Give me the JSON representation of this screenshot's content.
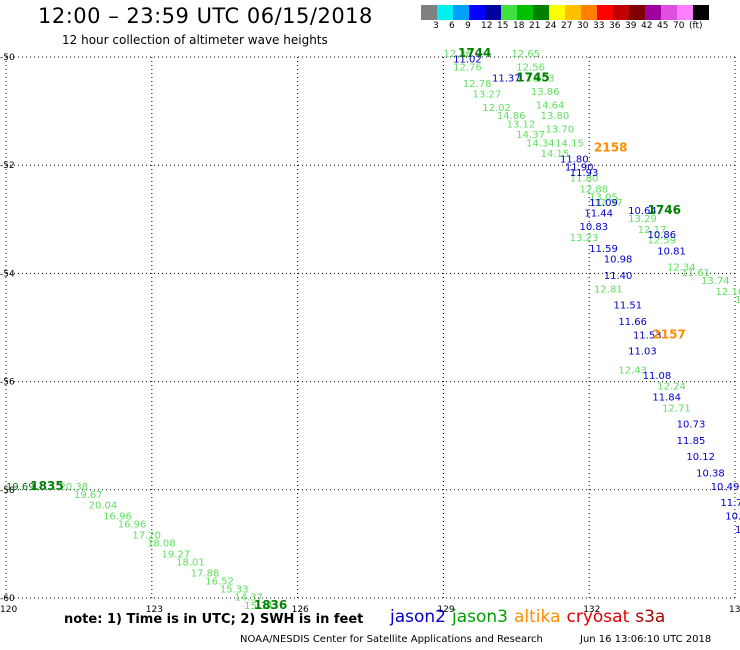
{
  "header": {
    "title": "12:00 – 23:59 UTC 06/15/2018",
    "subtitle": "12 hour collection of altimeter wave heights"
  },
  "scale": {
    "colors": [
      "#808080",
      "#00f0f0",
      "#00a0ff",
      "#0000ff",
      "#0000a0",
      "#40e040",
      "#00c000",
      "#008000",
      "#ffff00",
      "#ffc000",
      "#ff8000",
      "#ff0000",
      "#c00000",
      "#800000",
      "#a000a0",
      "#e050e0",
      "#ff80ff",
      "#000000"
    ],
    "labels": [
      "3",
      "6",
      "9",
      "12",
      "15",
      "18",
      "21",
      "24",
      "27",
      "30",
      "33",
      "36",
      "39",
      "42",
      "45",
      "70",
      "(ft)"
    ]
  },
  "axes": {
    "x_ticks": [
      "120",
      "123",
      "126",
      "129",
      "132",
      "135"
    ],
    "y_ticks": [
      "-50",
      "-52",
      "-54",
      "-56",
      "-58",
      "-60"
    ]
  },
  "note": "note: 1) Time is in UTC; 2) SWH is in feet",
  "legend": [
    {
      "label": "jason2",
      "color": "#0000cc"
    },
    {
      "label": "jason3",
      "color": "#00a000"
    },
    {
      "label": "altika",
      "color": "#ff8c00"
    },
    {
      "label": "cryosat",
      "color": "#dd0000"
    },
    {
      "label": "s3a",
      "color": "#aa0000"
    }
  ],
  "credit": "NOAA/NESDIS Center for Satellite Applications and Research",
  "timestamp": "Jun 16 13:06:10 UTC 2018",
  "chart_data": {
    "type": "scatter",
    "xlim": [
      120,
      135
    ],
    "ylim": [
      -60.0,
      -50.0
    ],
    "x_ticks": [
      120,
      123,
      126,
      129,
      132,
      135
    ],
    "y_ticks": [
      -50,
      -52,
      -54,
      -56,
      -58,
      -60
    ],
    "grid": true,
    "series": [
      {
        "name": "jason3",
        "color": "#60e060",
        "points": [
          {
            "x": 121.1,
            "y": -58.0,
            "label": "20.38"
          },
          {
            "x": 121.4,
            "y": -58.15,
            "label": "19.67"
          },
          {
            "x": 121.7,
            "y": -58.35,
            "label": "20.04"
          },
          {
            "x": 122.0,
            "y": -58.55,
            "label": "16.96"
          },
          {
            "x": 122.3,
            "y": -58.7,
            "label": "16.96"
          },
          {
            "x": 122.6,
            "y": -58.9,
            "label": "17.20"
          },
          {
            "x": 122.9,
            "y": -59.05,
            "label": "18.08"
          },
          {
            "x": 123.2,
            "y": -59.25,
            "label": "19.27"
          },
          {
            "x": 123.5,
            "y": -59.4,
            "label": "18.01"
          },
          {
            "x": 123.8,
            "y": -59.6,
            "label": "17.88"
          },
          {
            "x": 124.1,
            "y": -59.75,
            "label": "16.52"
          },
          {
            "x": 124.4,
            "y": -59.9,
            "label": "15.33"
          },
          {
            "x": 124.7,
            "y": -60.05,
            "label": "14.37"
          },
          {
            "x": 124.9,
            "y": -60.2,
            "label": "15.34"
          }
        ]
      },
      {
        "name": "jason3",
        "color": "#008000",
        "points": [
          {
            "x": 120.0,
            "y": -58.0,
            "label": "19.69"
          }
        ]
      },
      {
        "name": "jason3",
        "color": "#60e060",
        "points": [
          {
            "x": 129.0,
            "y": -50.0,
            "label": "12.36"
          },
          {
            "x": 129.2,
            "y": -50.25,
            "label": "12.76"
          },
          {
            "x": 129.4,
            "y": -50.55,
            "label": "12.78"
          },
          {
            "x": 129.6,
            "y": -50.75,
            "label": "13.27"
          },
          {
            "x": 129.8,
            "y": -51.0,
            "label": "12.02"
          },
          {
            "x": 130.1,
            "y": -51.15,
            "label": "14.86"
          },
          {
            "x": 130.3,
            "y": -51.3,
            "label": "13.12"
          },
          {
            "x": 130.5,
            "y": -51.5,
            "label": "14.37"
          },
          {
            "x": 130.7,
            "y": -51.65,
            "label": "14.34"
          },
          {
            "x": 131.0,
            "y": -51.85,
            "label": "14.15"
          },
          {
            "x": 131.6,
            "y": -52.3,
            "label": "11.80"
          },
          {
            "x": 131.8,
            "y": -52.5,
            "label": "12.88"
          },
          {
            "x": 132.0,
            "y": -52.65,
            "label": "13.05"
          },
          {
            "x": 132.1,
            "y": -52.75,
            "label": "12.37"
          },
          {
            "x": 132.8,
            "y": -53.05,
            "label": "13.29"
          },
          {
            "x": 133.0,
            "y": -53.25,
            "label": "12.17"
          },
          {
            "x": 133.2,
            "y": -53.45,
            "label": "12.59"
          },
          {
            "x": 133.6,
            "y": -53.95,
            "label": "12.34"
          },
          {
            "x": 133.9,
            "y": -54.05,
            "label": "11.61"
          },
          {
            "x": 134.3,
            "y": -54.2,
            "label": "13.74"
          },
          {
            "x": 134.6,
            "y": -54.4,
            "label": "12.16"
          },
          {
            "x": 135.0,
            "y": -54.55,
            "label": "12.6"
          },
          {
            "x": 131.6,
            "y": -53.4,
            "label": "13.23"
          },
          {
            "x": 132.1,
            "y": -54.35,
            "label": "12.81"
          },
          {
            "x": 132.6,
            "y": -55.85,
            "label": "12.43"
          },
          {
            "x": 133.4,
            "y": -56.15,
            "label": "12.24"
          },
          {
            "x": 133.5,
            "y": -56.55,
            "label": "12.71"
          }
        ]
      },
      {
        "name": "jason3",
        "color": "#60e060",
        "points": [
          {
            "x": 130.4,
            "y": -50.0,
            "label": "12.65"
          },
          {
            "x": 130.5,
            "y": -50.25,
            "label": "12.56"
          },
          {
            "x": 130.7,
            "y": -50.45,
            "label": "13.03"
          },
          {
            "x": 130.8,
            "y": -50.7,
            "label": "13.86"
          },
          {
            "x": 130.9,
            "y": -50.95,
            "label": "14.64"
          },
          {
            "x": 131.0,
            "y": -51.15,
            "label": "13.80"
          },
          {
            "x": 131.1,
            "y": -51.4,
            "label": "13.70"
          },
          {
            "x": 131.3,
            "y": -51.65,
            "label": "14.15"
          }
        ]
      },
      {
        "name": "jason2",
        "color": "#0000cc",
        "points": [
          {
            "x": 129.2,
            "y": -50.1,
            "label": "11.02"
          },
          {
            "x": 130.0,
            "y": -50.45,
            "label": "11.37"
          },
          {
            "x": 131.4,
            "y": -51.95,
            "label": "11.80"
          },
          {
            "x": 131.5,
            "y": -52.1,
            "label": "11.90"
          },
          {
            "x": 131.6,
            "y": -52.2,
            "label": "11.93"
          },
          {
            "x": 132.0,
            "y": -52.75,
            "label": "11.09"
          },
          {
            "x": 132.8,
            "y": -52.9,
            "label": "10.64"
          },
          {
            "x": 131.9,
            "y": -52.95,
            "label": "11.44"
          },
          {
            "x": 131.8,
            "y": -53.2,
            "label": "10.83"
          },
          {
            "x": 133.2,
            "y": -53.35,
            "label": "10.86"
          },
          {
            "x": 133.4,
            "y": -53.65,
            "label": "10.81"
          },
          {
            "x": 132.0,
            "y": -53.6,
            "label": "11.59"
          },
          {
            "x": 132.3,
            "y": -53.8,
            "label": "10.98"
          },
          {
            "x": 132.3,
            "y": -54.1,
            "label": "11.40"
          },
          {
            "x": 132.5,
            "y": -54.65,
            "label": "11.51"
          },
          {
            "x": 132.6,
            "y": -54.95,
            "label": "11.66"
          },
          {
            "x": 132.9,
            "y": -55.2,
            "label": "11.53"
          },
          {
            "x": 132.8,
            "y": -55.5,
            "label": "11.03"
          },
          {
            "x": 133.1,
            "y": -55.95,
            "label": "11.08"
          },
          {
            "x": 133.3,
            "y": -56.35,
            "label": "11.84"
          },
          {
            "x": 133.8,
            "y": -56.85,
            "label": "10.73"
          },
          {
            "x": 133.8,
            "y": -57.15,
            "label": "11.85"
          },
          {
            "x": 134.0,
            "y": -57.45,
            "label": "10.12"
          },
          {
            "x": 134.2,
            "y": -57.75,
            "label": "10.38"
          },
          {
            "x": 134.5,
            "y": -58.0,
            "label": "10.49"
          },
          {
            "x": 134.7,
            "y": -58.3,
            "label": "11.70"
          },
          {
            "x": 134.8,
            "y": -58.55,
            "label": "10.3"
          },
          {
            "x": 135.0,
            "y": -58.8,
            "label": "11."
          }
        ]
      }
    ],
    "annotations": [
      {
        "x": 129.3,
        "y": -50.0,
        "text": "1744",
        "color": "#008000"
      },
      {
        "x": 130.5,
        "y": -50.45,
        "text": "1745",
        "color": "#008000"
      },
      {
        "x": 132.1,
        "y": -51.75,
        "text": "2158",
        "color": "#ff8c00"
      },
      {
        "x": 133.2,
        "y": -52.9,
        "text": "1746",
        "color": "#008000"
      },
      {
        "x": 133.3,
        "y": -55.2,
        "text": "2157",
        "color": "#ff8c00"
      },
      {
        "x": 120.5,
        "y": -58.0,
        "text": "1835",
        "color": "#008000"
      },
      {
        "x": 125.1,
        "y": -60.2,
        "text": "1836",
        "color": "#008000"
      }
    ]
  }
}
